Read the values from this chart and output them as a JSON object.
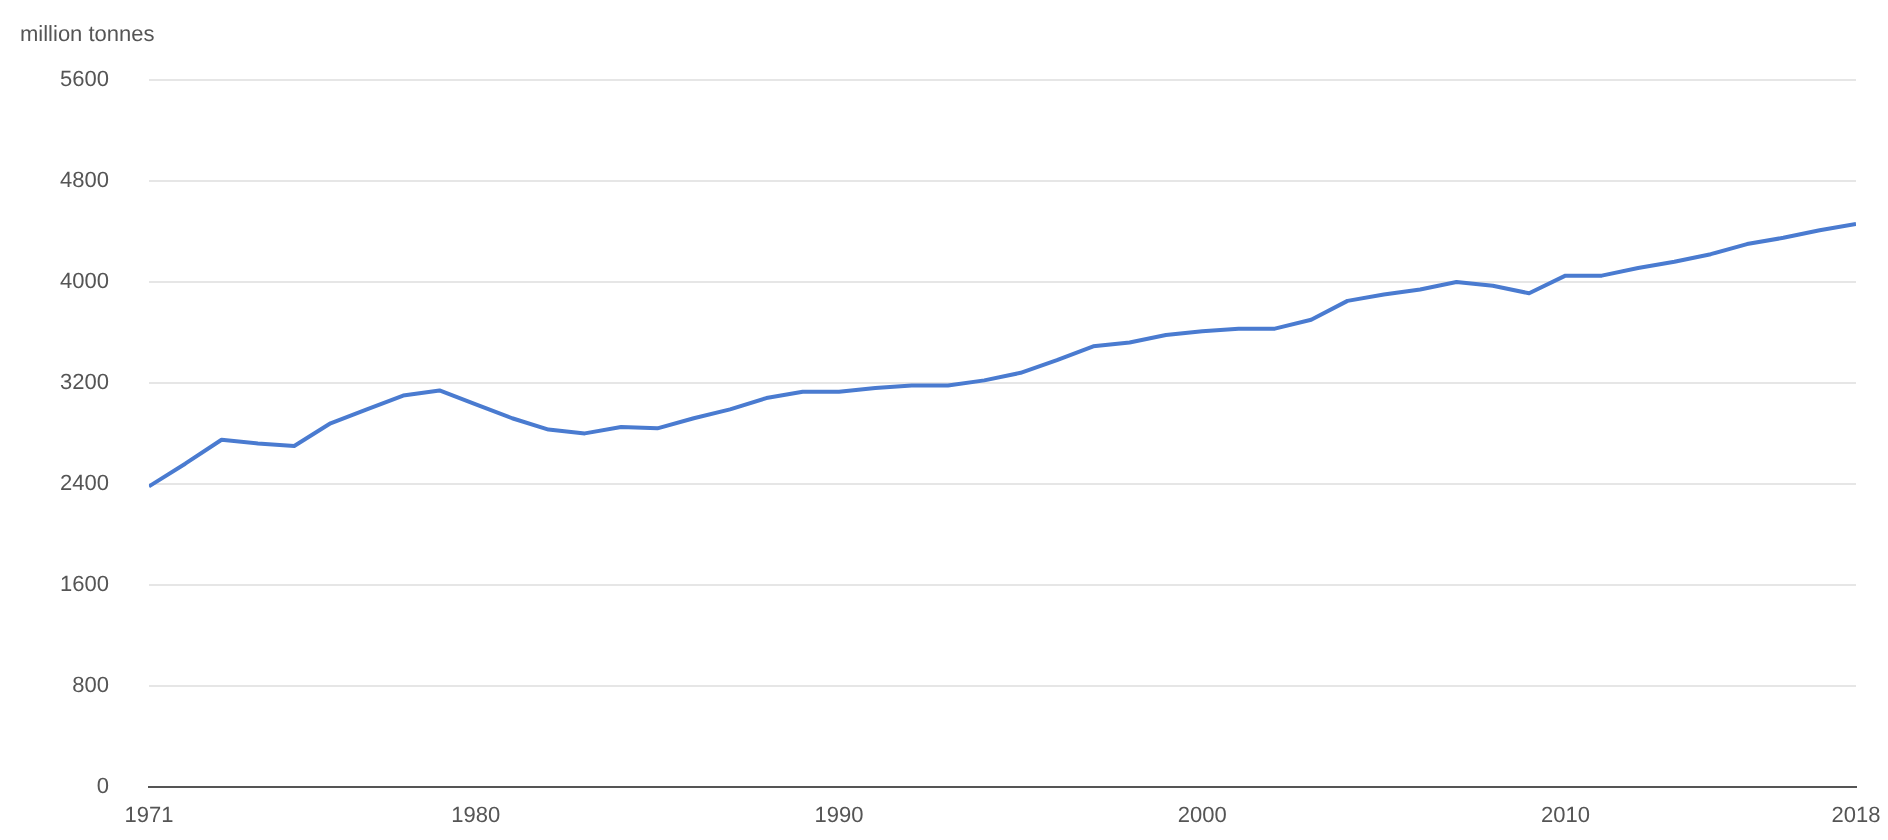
{
  "chart_data": {
    "type": "line",
    "ylabel": "million tonnes",
    "x": [
      1971,
      1972,
      1973,
      1974,
      1975,
      1976,
      1977,
      1978,
      1979,
      1980,
      1981,
      1982,
      1983,
      1984,
      1985,
      1986,
      1987,
      1988,
      1989,
      1990,
      1991,
      1992,
      1993,
      1994,
      1995,
      1996,
      1997,
      1998,
      1999,
      2000,
      2001,
      2002,
      2003,
      2004,
      2005,
      2006,
      2007,
      2008,
      2009,
      2010,
      2011,
      2012,
      2013,
      2014,
      2015,
      2016,
      2017,
      2018
    ],
    "series": [
      {
        "color": "#4a7bd0",
        "values": [
          2380,
          2560,
          2750,
          2720,
          2700,
          2880,
          2990,
          3100,
          3140,
          3030,
          2920,
          2830,
          2800,
          2850,
          2840,
          2920,
          2990,
          3080,
          3130,
          3130,
          3160,
          3180,
          3180,
          3220,
          3280,
          3380,
          3490,
          3520,
          3580,
          3610,
          3630,
          3630,
          3700,
          3850,
          3900,
          3940,
          4000,
          3970,
          3910,
          4050,
          4050,
          4110,
          4160,
          4220,
          4300,
          4350,
          4410,
          4460
        ]
      }
    ],
    "xlim": [
      1971,
      2018
    ],
    "xticks": [
      1971,
      1980,
      1990,
      2000,
      2010,
      2018
    ],
    "ylim": [
      0,
      5600
    ],
    "yticks": [
      0,
      800,
      1600,
      2400,
      3200,
      4000,
      4800,
      5600
    ],
    "grid": "y",
    "legend": false,
    "marker": "none",
    "line_style": "solid"
  }
}
